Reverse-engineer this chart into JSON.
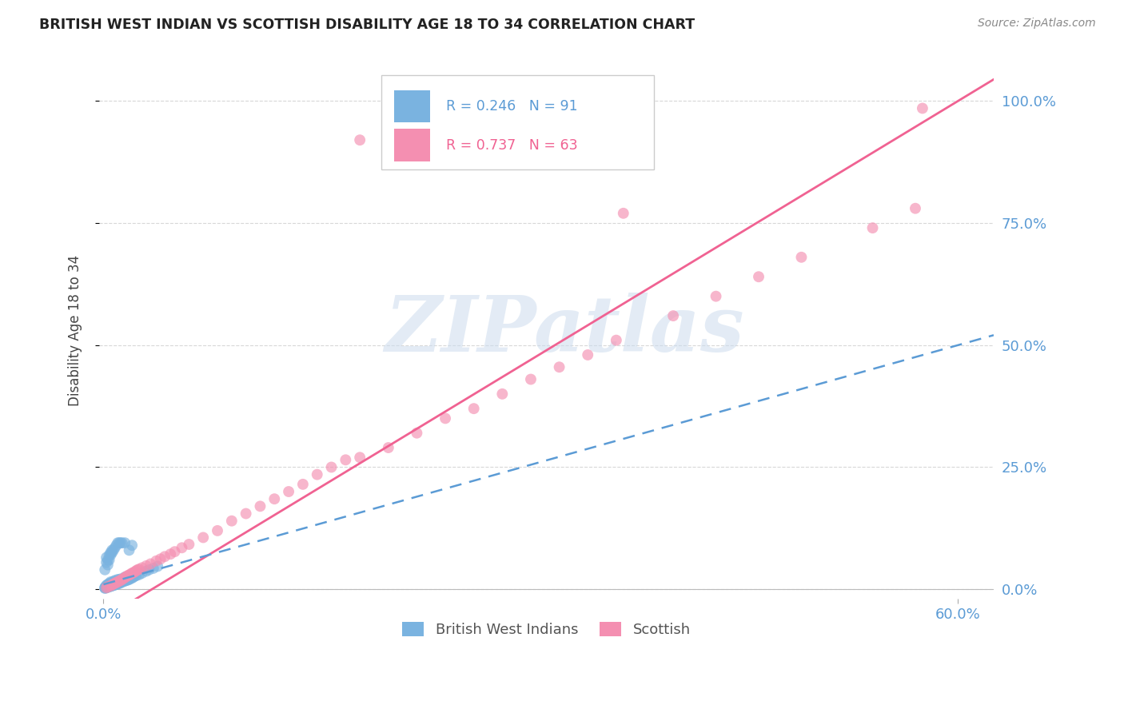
{
  "title": "BRITISH WEST INDIAN VS SCOTTISH DISABILITY AGE 18 TO 34 CORRELATION CHART",
  "source": "Source: ZipAtlas.com",
  "ylabel": "Disability Age 18 to 34",
  "xlim": [
    -0.003,
    0.625
  ],
  "ylim": [
    -0.02,
    1.08
  ],
  "xtick_vals": [
    0.0,
    0.6
  ],
  "xtick_labels": [
    "0.0%",
    "60.0%"
  ],
  "ytick_vals": [
    0.0,
    0.25,
    0.5,
    0.75,
    1.0
  ],
  "ytick_labels": [
    "0.0%",
    "25.0%",
    "50.0%",
    "75.0%",
    "100.0%"
  ],
  "watermark": "ZIPatlas",
  "legend_blue_label": "British West Indians",
  "legend_pink_label": "Scottish",
  "R_blue": 0.246,
  "N_blue": 91,
  "R_pink": 0.737,
  "N_pink": 63,
  "blue_color": "#7ab3e0",
  "pink_color": "#f48fb1",
  "blue_line_color": "#5b9bd5",
  "pink_line_color": "#f06292",
  "axis_color": "#5b9bd5",
  "grid_color": "#d8d8d8",
  "title_color": "#222222",
  "source_color": "#888888",
  "watermark_color": "#ccdcee",
  "bwi_x": [
    0.001,
    0.001,
    0.001,
    0.002,
    0.002,
    0.002,
    0.002,
    0.003,
    0.003,
    0.003,
    0.003,
    0.003,
    0.004,
    0.004,
    0.004,
    0.004,
    0.005,
    0.005,
    0.005,
    0.005,
    0.005,
    0.006,
    0.006,
    0.006,
    0.006,
    0.007,
    0.007,
    0.007,
    0.007,
    0.008,
    0.008,
    0.008,
    0.008,
    0.009,
    0.009,
    0.009,
    0.01,
    0.01,
    0.01,
    0.01,
    0.011,
    0.011,
    0.011,
    0.012,
    0.012,
    0.012,
    0.013,
    0.013,
    0.014,
    0.014,
    0.015,
    0.015,
    0.015,
    0.016,
    0.016,
    0.017,
    0.017,
    0.018,
    0.018,
    0.019,
    0.02,
    0.021,
    0.022,
    0.023,
    0.025,
    0.027,
    0.03,
    0.032,
    0.035,
    0.038,
    0.001,
    0.002,
    0.002,
    0.003,
    0.003,
    0.004,
    0.004,
    0.005,
    0.005,
    0.006,
    0.006,
    0.007,
    0.008,
    0.009,
    0.01,
    0.011,
    0.012,
    0.013,
    0.015,
    0.018,
    0.02
  ],
  "bwi_y": [
    0.002,
    0.003,
    0.004,
    0.003,
    0.005,
    0.006,
    0.008,
    0.004,
    0.006,
    0.007,
    0.009,
    0.01,
    0.005,
    0.007,
    0.008,
    0.012,
    0.006,
    0.008,
    0.01,
    0.012,
    0.015,
    0.007,
    0.009,
    0.011,
    0.014,
    0.008,
    0.01,
    0.013,
    0.016,
    0.009,
    0.011,
    0.014,
    0.018,
    0.01,
    0.013,
    0.016,
    0.011,
    0.014,
    0.017,
    0.02,
    0.012,
    0.015,
    0.019,
    0.013,
    0.017,
    0.021,
    0.015,
    0.018,
    0.016,
    0.02,
    0.017,
    0.021,
    0.025,
    0.018,
    0.023,
    0.019,
    0.024,
    0.02,
    0.026,
    0.022,
    0.023,
    0.025,
    0.027,
    0.028,
    0.03,
    0.033,
    0.037,
    0.04,
    0.043,
    0.047,
    0.04,
    0.055,
    0.065,
    0.05,
    0.06,
    0.06,
    0.07,
    0.07,
    0.075,
    0.075,
    0.08,
    0.08,
    0.085,
    0.09,
    0.095,
    0.095,
    0.095,
    0.095,
    0.095,
    0.08,
    0.09
  ],
  "scot_x": [
    0.002,
    0.003,
    0.005,
    0.006,
    0.007,
    0.008,
    0.009,
    0.01,
    0.011,
    0.012,
    0.013,
    0.014,
    0.015,
    0.016,
    0.017,
    0.018,
    0.019,
    0.02,
    0.021,
    0.022,
    0.023,
    0.024,
    0.025,
    0.027,
    0.03,
    0.033,
    0.037,
    0.04,
    0.043,
    0.047,
    0.05,
    0.055,
    0.06,
    0.07,
    0.08,
    0.09,
    0.1,
    0.11,
    0.12,
    0.13,
    0.14,
    0.15,
    0.16,
    0.17,
    0.18,
    0.2,
    0.22,
    0.24,
    0.26,
    0.28,
    0.3,
    0.32,
    0.34,
    0.36,
    0.4,
    0.43,
    0.46,
    0.49,
    0.54,
    0.57,
    0.18,
    0.365,
    0.575
  ],
  "scot_y": [
    0.003,
    0.005,
    0.007,
    0.009,
    0.011,
    0.012,
    0.014,
    0.015,
    0.017,
    0.018,
    0.02,
    0.022,
    0.024,
    0.026,
    0.028,
    0.029,
    0.031,
    0.033,
    0.034,
    0.036,
    0.038,
    0.04,
    0.041,
    0.044,
    0.048,
    0.052,
    0.058,
    0.062,
    0.067,
    0.072,
    0.077,
    0.085,
    0.092,
    0.106,
    0.12,
    0.14,
    0.155,
    0.17,
    0.185,
    0.2,
    0.215,
    0.235,
    0.25,
    0.265,
    0.27,
    0.29,
    0.32,
    0.35,
    0.37,
    0.4,
    0.43,
    0.455,
    0.48,
    0.51,
    0.56,
    0.6,
    0.64,
    0.68,
    0.74,
    0.78,
    0.92,
    0.77,
    0.985
  ]
}
